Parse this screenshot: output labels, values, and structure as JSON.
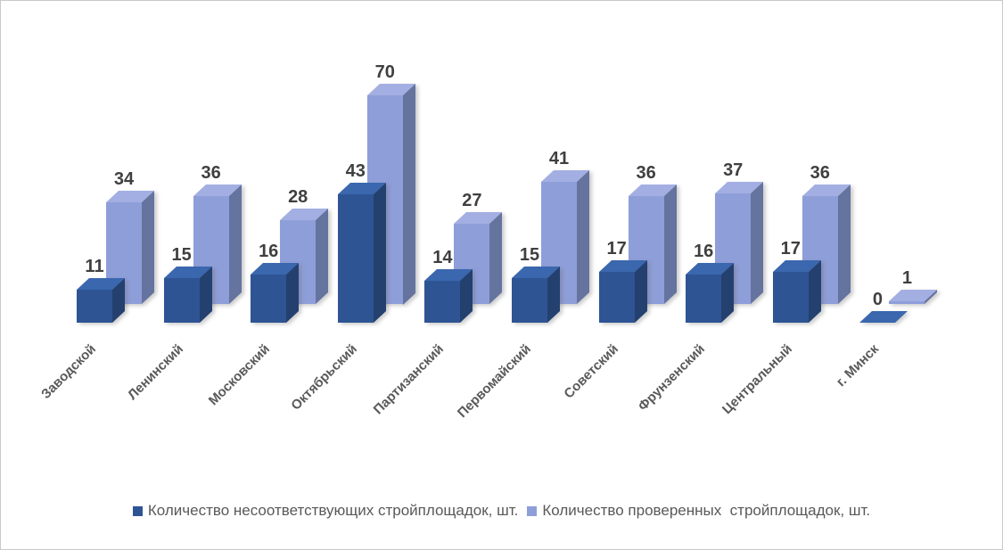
{
  "chart_data": {
    "type": "bar",
    "variant": "3d-clustered-column",
    "title": "",
    "categories": [
      "Заводской",
      "Ленинский",
      "Московский",
      "Октябрьский",
      "Партизанский",
      "Первомайский",
      "Советский",
      "Фрунзенский",
      "Центральный",
      "г. Минск"
    ],
    "series": [
      {
        "name": "Количество несоответствующих стройплощадок, шт.",
        "values": [
          11,
          15,
          16,
          43,
          14,
          15,
          17,
          16,
          17,
          0
        ],
        "color": "#2E5494",
        "color_top": "#3A67AE",
        "color_side": "#24406F"
      },
      {
        "name": "Количество проверенных  стройплощадок, шт.",
        "values": [
          34,
          36,
          28,
          70,
          27,
          41,
          36,
          37,
          36,
          1
        ],
        "color": "#8E9ED9",
        "color_top": "#A3AFE2",
        "color_side": "#65739F"
      }
    ],
    "data_labels": true,
    "data_label_color": "#3F3F3F",
    "category_label_color": "#595959",
    "legend_position": "bottom",
    "gridlines": false,
    "axes_visible": false,
    "background": "#FFFFFF"
  }
}
